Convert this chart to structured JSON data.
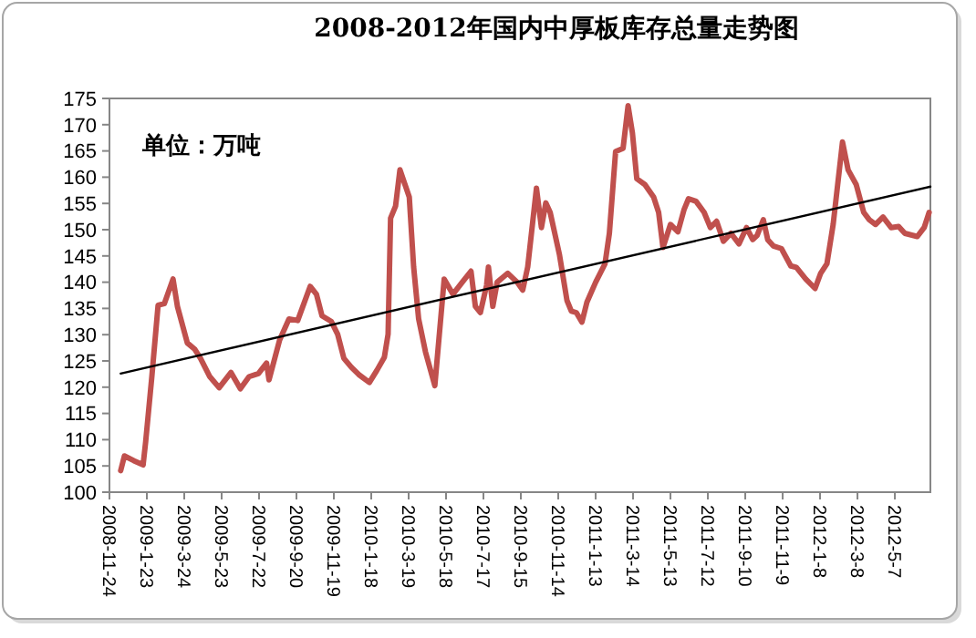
{
  "chart_data": {
    "type": "line",
    "title": "2008-2012年国内中厚板库存总量走势图",
    "annotations": [
      "单位：万吨"
    ],
    "xlim": [
      "2008-11-24",
      "2012-07-03"
    ],
    "xticks": [
      {
        "value": "2008-11-24",
        "label": "2008-11-24"
      },
      {
        "value": "2009-01-23",
        "label": "2009-1-23"
      },
      {
        "value": "2009-03-24",
        "label": "2009-3-24"
      },
      {
        "value": "2009-05-23",
        "label": "2009-5-23"
      },
      {
        "value": "2009-07-22",
        "label": "2009-7-22"
      },
      {
        "value": "2009-09-20",
        "label": "2009-9-20"
      },
      {
        "value": "2009-11-19",
        "label": "2009-11-19"
      },
      {
        "value": "2010-01-18",
        "label": "2010-1-18"
      },
      {
        "value": "2010-03-19",
        "label": "2010-3-19"
      },
      {
        "value": "2010-05-18",
        "label": "2010-5-18"
      },
      {
        "value": "2010-07-17",
        "label": "2010-7-17"
      },
      {
        "value": "2010-09-15",
        "label": "2010-9-15"
      },
      {
        "value": "2010-11-14",
        "label": "2010-11-14"
      },
      {
        "value": "2011-01-13",
        "label": "2011-1-13"
      },
      {
        "value": "2011-03-14",
        "label": "2011-3-14"
      },
      {
        "value": "2011-05-13",
        "label": "2011-5-13"
      },
      {
        "value": "2011-07-12",
        "label": "2011-7-12"
      },
      {
        "value": "2011-09-10",
        "label": "2011-9-10"
      },
      {
        "value": "2011-11-09",
        "label": "2011-11-9"
      },
      {
        "value": "2012-01-08",
        "label": "2012-1-8"
      },
      {
        "value": "2012-03-08",
        "label": "2012-3-8"
      },
      {
        "value": "2012-05-07",
        "label": "2012-5-7"
      }
    ],
    "ylim": [
      100,
      175
    ],
    "yticks": [
      100,
      105,
      110,
      115,
      120,
      125,
      130,
      135,
      140,
      145,
      150,
      155,
      160,
      165,
      170,
      175
    ],
    "grid": false,
    "series": [
      {
        "color": "#c0504d",
        "x": [
          "2008-12-12",
          "2008-12-18",
          "2009-01-02",
          "2009-01-17",
          "2009-01-21",
          "2009-01-31",
          "2009-02-10",
          "2009-02-20",
          "2009-03-06",
          "2009-03-13",
          "2009-03-29",
          "2009-04-10",
          "2009-04-19",
          "2009-05-04",
          "2009-05-19",
          "2009-06-07",
          "2009-06-22",
          "2009-07-06",
          "2009-07-21",
          "2009-08-03",
          "2009-08-07",
          "2009-08-24",
          "2009-09-08",
          "2009-09-22",
          "2009-10-12",
          "2009-10-22",
          "2009-10-31",
          "2009-11-15",
          "2009-11-25",
          "2009-12-05",
          "2009-12-17",
          "2009-12-29",
          "2010-01-15",
          "2010-01-27",
          "2010-02-08",
          "2010-02-14",
          "2010-02-18",
          "2010-02-26",
          "2010-03-05",
          "2010-03-20",
          "2010-03-27",
          "2010-04-04",
          "2010-04-15",
          "2010-04-30",
          "2010-05-15",
          "2010-05-29",
          "2010-06-13",
          "2010-06-27",
          "2010-07-04",
          "2010-07-12",
          "2010-07-22",
          "2010-07-25",
          "2010-08-01",
          "2010-08-08",
          "2010-08-25",
          "2010-09-09",
          "2010-09-18",
          "2010-09-26",
          "2010-10-10",
          "2010-10-18",
          "2010-10-25",
          "2010-11-01",
          "2010-11-16",
          "2010-11-28",
          "2010-12-05",
          "2010-12-13",
          "2010-12-22",
          "2010-12-30",
          "2011-01-13",
          "2011-01-28",
          "2011-02-04",
          "2011-02-14",
          "2011-02-26",
          "2011-03-06",
          "2011-03-13",
          "2011-03-20",
          "2011-04-02",
          "2011-04-16",
          "2011-04-24",
          "2011-05-01",
          "2011-05-13",
          "2011-05-25",
          "2011-06-04",
          "2011-06-11",
          "2011-06-23",
          "2011-07-06",
          "2011-07-16",
          "2011-07-26",
          "2011-08-06",
          "2011-08-18",
          "2011-08-31",
          "2011-09-12",
          "2011-09-22",
          "2011-09-29",
          "2011-10-09",
          "2011-10-16",
          "2011-10-25",
          "2011-11-07",
          "2011-11-22",
          "2011-12-01",
          "2011-12-16",
          "2011-12-31",
          "2012-01-09",
          "2012-01-19",
          "2012-01-29",
          "2012-02-13",
          "2012-02-22",
          "2012-03-06",
          "2012-03-18",
          "2012-03-27",
          "2012-04-06",
          "2012-04-18",
          "2012-05-01",
          "2012-05-13",
          "2012-05-23",
          "2012-06-12",
          "2012-06-23",
          "2012-07-01"
        ],
        "values": [
          104.1,
          106.9,
          106,
          105.2,
          109.5,
          122,
          135.6,
          135.9,
          140.6,
          135.4,
          128.4,
          127.2,
          125.5,
          122,
          119.9,
          122.8,
          119.7,
          122,
          122.6,
          124.6,
          121.4,
          129,
          133,
          132.7,
          139.2,
          137.7,
          133.6,
          132.5,
          130.1,
          125.5,
          123.8,
          122.4,
          120.9,
          123.2,
          125.7,
          130.1,
          152.2,
          154.5,
          161.4,
          156.2,
          142.9,
          133,
          126.7,
          120.3,
          140.6,
          137.7,
          140,
          142.1,
          135.4,
          134.2,
          139.4,
          142.9,
          135.4,
          140,
          141.7,
          140,
          138.5,
          142.9,
          157.9,
          150.4,
          155.1,
          153.3,
          145.2,
          136.5,
          134.5,
          134.2,
          132.4,
          136.2,
          140,
          143.5,
          149.3,
          164.9,
          165.5,
          173.6,
          168.4,
          159.7,
          158.6,
          156.2,
          153.3,
          146.6,
          151,
          149.6,
          153.9,
          155.9,
          155.4,
          153.3,
          150.4,
          151.6,
          147.8,
          149.3,
          147.3,
          150.4,
          148.1,
          148.9,
          151.9,
          148.1,
          146.9,
          146.4,
          143.1,
          142.8,
          140.6,
          138.8,
          141.7,
          143.5,
          151,
          166.7,
          161.4,
          158.6,
          153.3,
          151.9,
          151,
          152.4,
          150.4,
          150.6,
          149.3,
          148.7,
          150.4,
          153.3
        ]
      },
      {
        "type": "line",
        "color": "#000000",
        "x": [
          "2008-12-12",
          "2012-07-03"
        ],
        "values": [
          122.6,
          158.2
        ]
      }
    ]
  }
}
